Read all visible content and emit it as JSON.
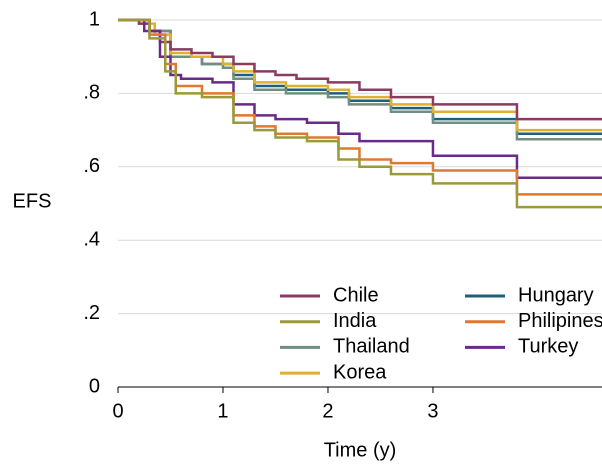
{
  "chart_data": {
    "type": "line",
    "step": "post",
    "y_label": "EFS",
    "x_label": "Time (y)",
    "xlim": [
      0,
      4.61
    ],
    "xticks": [
      0,
      1,
      2,
      3
    ],
    "ylim": [
      0,
      1
    ],
    "yticks": [
      0,
      {
        "value": 0.2,
        "label": ".2"
      },
      {
        "value": 0.4,
        "label": ".4"
      },
      {
        "value": 0.6,
        "label": ".6"
      },
      {
        "value": 0.8,
        "label": ".8"
      },
      1
    ],
    "grid": true,
    "legend": "lower right",
    "series": [
      {
        "name": "Chile",
        "color": "#8b3a62",
        "x": [
          0,
          0.2,
          0.3,
          0.4,
          0.5,
          0.7,
          0.9,
          1.1,
          1.3,
          1.5,
          1.7,
          2.0,
          2.3,
          2.6,
          3.0,
          3.8,
          4.61
        ],
        "values": [
          1,
          0.99,
          0.97,
          0.94,
          0.92,
          0.91,
          0.9,
          0.88,
          0.86,
          0.85,
          0.84,
          0.83,
          0.81,
          0.79,
          0.77,
          0.73,
          0.73
        ]
      },
      {
        "name": "India",
        "color": "#9a9a3a",
        "x": [
          0,
          0.3,
          0.45,
          0.55,
          0.8,
          1.1,
          1.3,
          1.5,
          1.8,
          2.1,
          2.3,
          2.6,
          3.0,
          3.8,
          4.61
        ],
        "values": [
          1,
          0.95,
          0.86,
          0.8,
          0.79,
          0.72,
          0.7,
          0.68,
          0.67,
          0.62,
          0.6,
          0.58,
          0.555,
          0.49,
          0.49
        ]
      },
      {
        "name": "Thailand",
        "color": "#6f8f7f",
        "x": [
          0,
          0.3,
          0.5,
          0.8,
          1.0,
          1.1,
          1.3,
          1.6,
          2.0,
          2.2,
          2.6,
          3.0,
          3.8,
          4.61
        ],
        "values": [
          1,
          0.97,
          0.9,
          0.88,
          0.87,
          0.84,
          0.81,
          0.8,
          0.79,
          0.77,
          0.75,
          0.72,
          0.675,
          0.675
        ]
      },
      {
        "name": "Korea",
        "color": "#e0b030",
        "x": [
          0,
          0.2,
          0.35,
          0.5,
          0.7,
          1.0,
          1.1,
          1.3,
          1.6,
          2.0,
          2.2,
          2.6,
          3.0,
          3.8,
          4.61
        ],
        "values": [
          1,
          0.99,
          0.96,
          0.91,
          0.9,
          0.88,
          0.86,
          0.83,
          0.82,
          0.81,
          0.79,
          0.77,
          0.75,
          0.7,
          0.7
        ]
      },
      {
        "name": "Hungary",
        "color": "#1f5f7a",
        "x": [
          0,
          0.3,
          0.5,
          0.8,
          1.1,
          1.3,
          1.6,
          2.0,
          2.2,
          2.6,
          3.0,
          3.8,
          4.61
        ],
        "values": [
          1,
          0.97,
          0.9,
          0.88,
          0.85,
          0.82,
          0.81,
          0.8,
          0.78,
          0.76,
          0.73,
          0.69,
          0.69
        ]
      },
      {
        "name": "Philipines",
        "color": "#e07830",
        "x": [
          0,
          0.3,
          0.45,
          0.55,
          0.8,
          1.1,
          1.3,
          1.5,
          1.8,
          2.1,
          2.3,
          2.6,
          3.0,
          3.8,
          4.61
        ],
        "values": [
          1,
          0.96,
          0.88,
          0.82,
          0.8,
          0.74,
          0.71,
          0.69,
          0.68,
          0.65,
          0.62,
          0.61,
          0.59,
          0.525,
          0.525
        ]
      },
      {
        "name": "Turkey",
        "color": "#6a2a8a",
        "x": [
          0,
          0.25,
          0.4,
          0.5,
          0.6,
          0.9,
          1.1,
          1.3,
          1.5,
          1.8,
          2.1,
          2.3,
          3.0,
          3.8,
          4.61
        ],
        "values": [
          1,
          0.97,
          0.9,
          0.85,
          0.84,
          0.83,
          0.77,
          0.74,
          0.73,
          0.72,
          0.69,
          0.67,
          0.63,
          0.57,
          0.57
        ]
      }
    ]
  }
}
